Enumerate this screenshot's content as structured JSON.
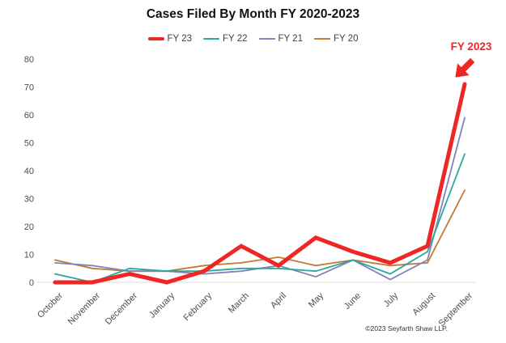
{
  "title": "Cases Filed By Month FY 2020-2023",
  "annotation": {
    "label": "FY 2023",
    "color": "#ee2624"
  },
  "footer": {
    "copyright": "©2023 Seyfarth Shaw LLP."
  },
  "chart_data": {
    "type": "line",
    "title": "Cases Filed By Month FY 2020-2023",
    "categories": [
      "October",
      "November",
      "December",
      "January",
      "February",
      "March",
      "April",
      "May",
      "June",
      "July",
      "August",
      "September"
    ],
    "series": [
      {
        "name": "FY 23",
        "color": "#ee2624",
        "width": 5,
        "values": [
          0,
          0,
          3,
          0,
          4,
          13,
          6,
          16,
          11,
          7,
          13,
          71
        ]
      },
      {
        "name": "FY 22",
        "color": "#2aa79b",
        "width": 1.8,
        "values": [
          3,
          0,
          5,
          4,
          4,
          5,
          5,
          4,
          8,
          3,
          11,
          46
        ]
      },
      {
        "name": "FY 21",
        "color": "#8084bc",
        "width": 1.8,
        "values": [
          7,
          6,
          4,
          4,
          3,
          4,
          6,
          2,
          8,
          1,
          8,
          59
        ]
      },
      {
        "name": "FY 20",
        "color": "#bf7b34",
        "width": 1.8,
        "values": [
          8,
          5,
          4,
          4,
          6,
          7,
          9,
          6,
          8,
          6,
          7,
          33
        ]
      }
    ],
    "xlabel": "",
    "ylabel": "",
    "ylim": [
      0,
      80
    ],
    "yticks": [
      0,
      10,
      20,
      30,
      40,
      50,
      60,
      70,
      80
    ],
    "grid": false,
    "legend_position": "top",
    "axis_line_color": "#d9d9d9"
  }
}
